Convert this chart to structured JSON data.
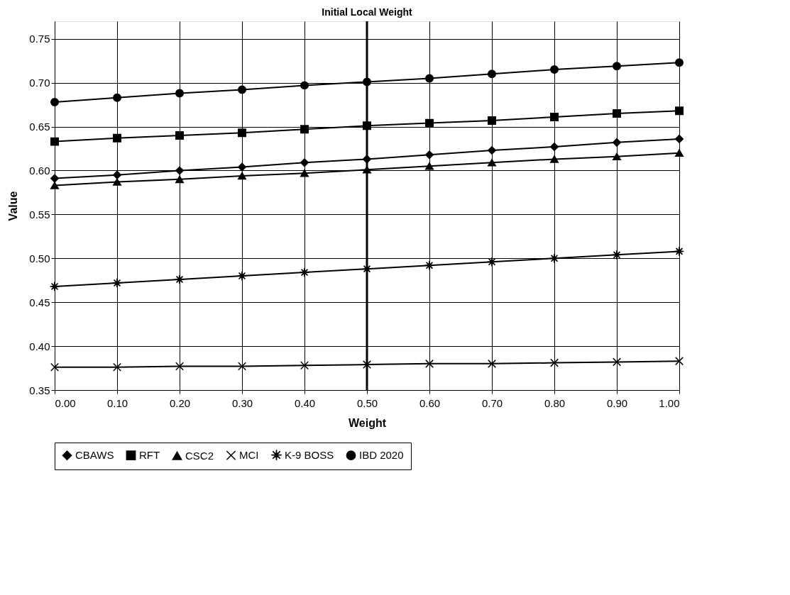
{
  "chart_data": {
    "type": "line",
    "title": "Initial Local Weight",
    "xlabel": "Weight",
    "ylabel": "Value",
    "x": [
      0.0,
      0.1,
      0.2,
      0.3,
      0.4,
      0.5,
      0.6,
      0.7,
      0.8,
      0.9,
      1.0
    ],
    "series": [
      {
        "name": "CBAWS",
        "color": "#000000",
        "marker": "diamond",
        "values": [
          0.591,
          0.595,
          0.6,
          0.604,
          0.609,
          0.613,
          0.618,
          0.623,
          0.627,
          0.632,
          0.636
        ]
      },
      {
        "name": "RFT",
        "color": "#000000",
        "marker": "square",
        "values": [
          0.633,
          0.637,
          0.64,
          0.643,
          0.647,
          0.651,
          0.654,
          0.657,
          0.661,
          0.665,
          0.668
        ]
      },
      {
        "name": "CSC2",
        "color": "#000000",
        "marker": "triangle",
        "values": [
          0.583,
          0.587,
          0.59,
          0.594,
          0.597,
          0.601,
          0.605,
          0.609,
          0.613,
          0.616,
          0.62
        ]
      },
      {
        "name": "MCI",
        "color": "#000000",
        "marker": "cross",
        "values": [
          0.376,
          0.376,
          0.377,
          0.377,
          0.378,
          0.379,
          0.38,
          0.38,
          0.381,
          0.382,
          0.383
        ]
      },
      {
        "name": "K-9 BOSS",
        "color": "#000000",
        "marker": "star",
        "values": [
          0.468,
          0.472,
          0.476,
          0.48,
          0.484,
          0.488,
          0.492,
          0.496,
          0.5,
          0.504,
          0.508
        ]
      },
      {
        "name": "IBD 2020",
        "color": "#000000",
        "marker": "circle",
        "values": [
          0.678,
          0.683,
          0.688,
          0.692,
          0.697,
          0.701,
          0.705,
          0.71,
          0.715,
          0.719,
          0.723
        ]
      }
    ],
    "xlim": [
      0,
      1
    ],
    "xticks": [
      {
        "value": 0,
        "label": "0.00"
      },
      {
        "value": 0.1,
        "label": "0.10"
      },
      {
        "value": 0.2,
        "label": "0.20"
      },
      {
        "value": 0.3,
        "label": "0.30"
      },
      {
        "value": 0.4,
        "label": "0.40"
      },
      {
        "value": 0.5,
        "label": "0.50"
      },
      {
        "value": 0.6,
        "label": "0.60"
      },
      {
        "value": 0.7,
        "label": "0.70"
      },
      {
        "value": 0.8,
        "label": "0.80"
      },
      {
        "value": 0.9,
        "label": "0.90"
      },
      {
        "value": 1,
        "label": "1.00"
      }
    ],
    "ylim": [
      0.35,
      0.77
    ],
    "yticks": [
      {
        "value": 0.35,
        "label": "0.35"
      },
      {
        "value": 0.4,
        "label": "0.40"
      },
      {
        "value": 0.45,
        "label": "0.45"
      },
      {
        "value": 0.5,
        "label": "0.50"
      },
      {
        "value": 0.55,
        "label": "0.55"
      },
      {
        "value": 0.6,
        "label": "0.60"
      },
      {
        "value": 0.65,
        "label": "0.65"
      },
      {
        "value": 0.7,
        "label": "0.70"
      },
      {
        "value": 0.75,
        "label": "0.75"
      }
    ],
    "ref_lines": [
      {
        "axis": "x",
        "value": 0.5,
        "color": "#000000"
      }
    ],
    "grid": true,
    "legend": "bottom",
    "line_style": "solid"
  }
}
